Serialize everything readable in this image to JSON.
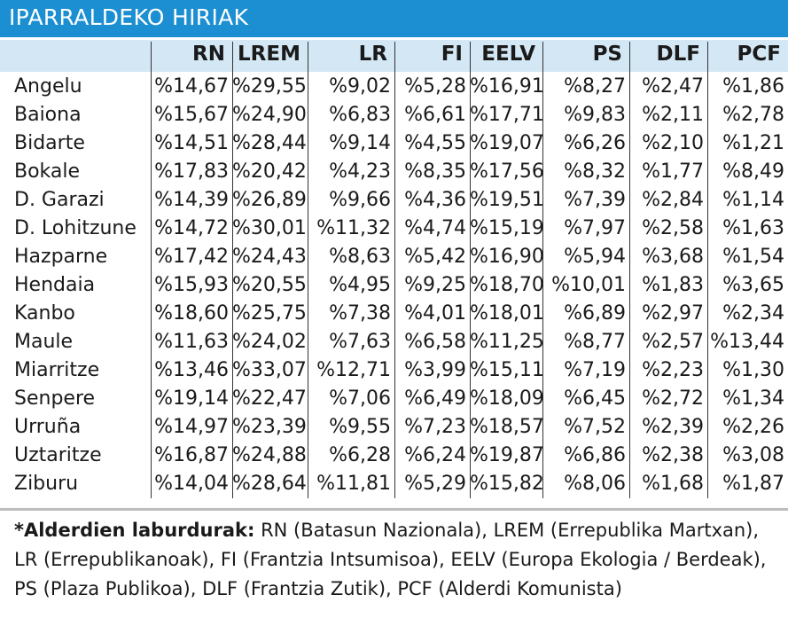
{
  "header": {
    "title": "IPARRALDEKO HIRIAK"
  },
  "table": {
    "columns": [
      "RN",
      "LREM",
      "LR",
      "FI",
      "EELV",
      "PS",
      "DLF",
      "PCF"
    ],
    "rows": [
      [
        "Angelu",
        "%14,67",
        "%29,55",
        "%9,02",
        "%5,28",
        "%16,91",
        "%8,27",
        "%2,47",
        "%1,86"
      ],
      [
        "Baiona",
        "%15,67",
        "%24,90",
        "%6,83",
        "%6,61",
        "%17,71",
        "%9,83",
        "%2,11",
        "%2,78"
      ],
      [
        "Bidarte",
        "%14,51",
        "%28,44",
        "%9,14",
        "%4,55",
        "%19,07",
        "%6,26",
        "%2,10",
        "%1,21"
      ],
      [
        "Bokale",
        "%17,83",
        "%20,42",
        "%4,23",
        "%8,35",
        "%17,56",
        "%8,32",
        "%1,77",
        "%8,49"
      ],
      [
        "D. Garazi",
        "%14,39",
        "%26,89",
        "%9,66",
        "%4,36",
        "%19,51",
        "%7,39",
        "%2,84",
        "%1,14"
      ],
      [
        "D. Lohitzune",
        "%14,72",
        "%30,01",
        "%11,32",
        "%4,74",
        "%15,19",
        "%7,97",
        "%2,58",
        "%1,63"
      ],
      [
        "Hazparne",
        "%17,42",
        "%24,43",
        "%8,63",
        "%5,42",
        "%16,90",
        "%5,94",
        "%3,68",
        "%1,54"
      ],
      [
        "Hendaia",
        "%15,93",
        "%20,55",
        "%4,95",
        "%9,25",
        "%18,70",
        "%10,01",
        "%1,83",
        "%3,65"
      ],
      [
        "Kanbo",
        "%18,60",
        "%25,75",
        "%7,38",
        "%4,01",
        "%18,01",
        "%6,89",
        "%2,97",
        "%2,34"
      ],
      [
        "Maule",
        "%11,63",
        "%24,02",
        "%7,63",
        "%6,58",
        "%11,25",
        "%8,77",
        "%2,57",
        "%13,44"
      ],
      [
        "Miarritze",
        "%13,46",
        "%33,07",
        "%12,71",
        "%3,99",
        "%15,11",
        "%7,19",
        "%2,23",
        "%1,30"
      ],
      [
        "Senpere",
        "%19,14",
        "%22,47",
        "%7,06",
        "%6,49",
        "%18,09",
        "%6,45",
        "%2,72",
        "%1,34"
      ],
      [
        "Urruña",
        "%14,97",
        "%23,39",
        "%9,55",
        "%7,23",
        "%18,57",
        "%7,52",
        "%2,39",
        "%2,26"
      ],
      [
        "Uztaritze",
        "%16,87",
        "%24,88",
        "%6,28",
        "%6,24",
        "%19,87",
        "%6,86",
        "%2,38",
        "%3,08"
      ],
      [
        "Ziburu",
        "%14,04",
        "%28,64",
        "%11,81",
        "%5,29",
        "%15,82",
        "%8,06",
        "%1,68",
        "%1,87"
      ]
    ]
  },
  "footnote": {
    "label": "*Alderdien laburdurak:",
    "text": "RN (Batasun Nazionala), LREM (Errepublika Martxan), LR (Errepublikanoak), FI (Frantzia Intsumisoa), EELV (Europa Ekologia / Berdeak), PS (Plaza Publikoa), DLF (Frantzia Zutik), PCF (Alderdi Komunista)"
  }
}
